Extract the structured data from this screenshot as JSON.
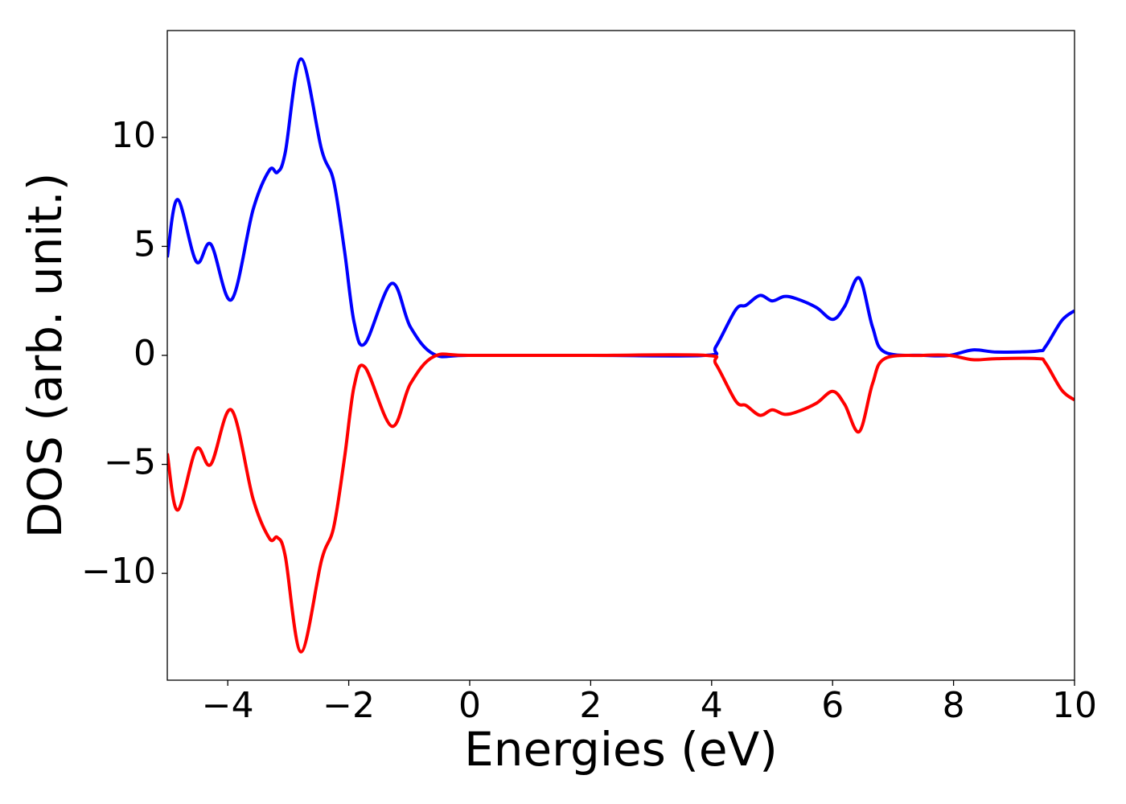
{
  "chart_data": {
    "type": "line",
    "xlabel": "Energies (eV)",
    "ylabel": "DOS (arb. unit.)",
    "x": [
      -5,
      -4.83,
      -4.52,
      -4.28,
      -3.94,
      -3.58,
      -3.31,
      -3.18,
      -3.05,
      -2.79,
      -2.45,
      -2.25,
      -2.07,
      -1.91,
      -1.73,
      -1.29,
      -0.98,
      -0.59,
      0,
      2,
      3.9,
      4.07,
      4.4,
      4.57,
      4.8,
      5.0,
      5.2,
      5.4,
      5.73,
      6.0,
      6.2,
      6.44,
      6.66,
      6.86,
      7.5,
      7.93,
      8.32,
      8.72,
      9.39,
      9.52,
      9.79,
      10
    ],
    "series": [
      {
        "color": "#0000ff",
        "values": [
          4.5,
          7.15,
          4.3,
          5.1,
          2.55,
          6.7,
          8.5,
          8.4,
          9.3,
          13.6,
          9.45,
          8.0,
          4.8,
          1.5,
          0.55,
          3.3,
          1.3,
          0.05,
          0,
          0,
          0,
          0.4,
          2.1,
          2.3,
          2.75,
          2.5,
          2.7,
          2.6,
          2.2,
          1.65,
          2.25,
          3.55,
          1.3,
          0.15,
          0,
          0,
          0.25,
          0.15,
          0.2,
          0.4,
          1.6,
          2.05
        ]
      },
      {
        "color": "#ff0000",
        "values": [
          -4.5,
          -7.1,
          -4.3,
          -5.0,
          -2.5,
          -6.6,
          -8.4,
          -8.35,
          -9.2,
          -13.6,
          -9.4,
          -7.9,
          -4.7,
          -1.4,
          -0.55,
          -3.25,
          -1.3,
          -0.05,
          0,
          0,
          0,
          -0.4,
          -2.1,
          -2.3,
          -2.75,
          -2.5,
          -2.7,
          -2.6,
          -2.2,
          -1.65,
          -2.25,
          -3.5,
          -1.3,
          -0.15,
          0,
          0,
          -0.2,
          -0.15,
          -0.15,
          -0.35,
          -1.6,
          -2.05
        ]
      }
    ],
    "xlim": [
      -5,
      10
    ],
    "ylim": [
      -14.9,
      14.9
    ],
    "xticks": [
      {
        "value": -4,
        "label": "−4"
      },
      {
        "value": -2,
        "label": "−2"
      },
      0,
      2,
      4,
      6,
      8,
      10
    ],
    "yticks": [
      {
        "value": -10,
        "label": "−10"
      },
      {
        "value": -5,
        "label": "−5"
      },
      0,
      5,
      10
    ],
    "grid": false
  }
}
